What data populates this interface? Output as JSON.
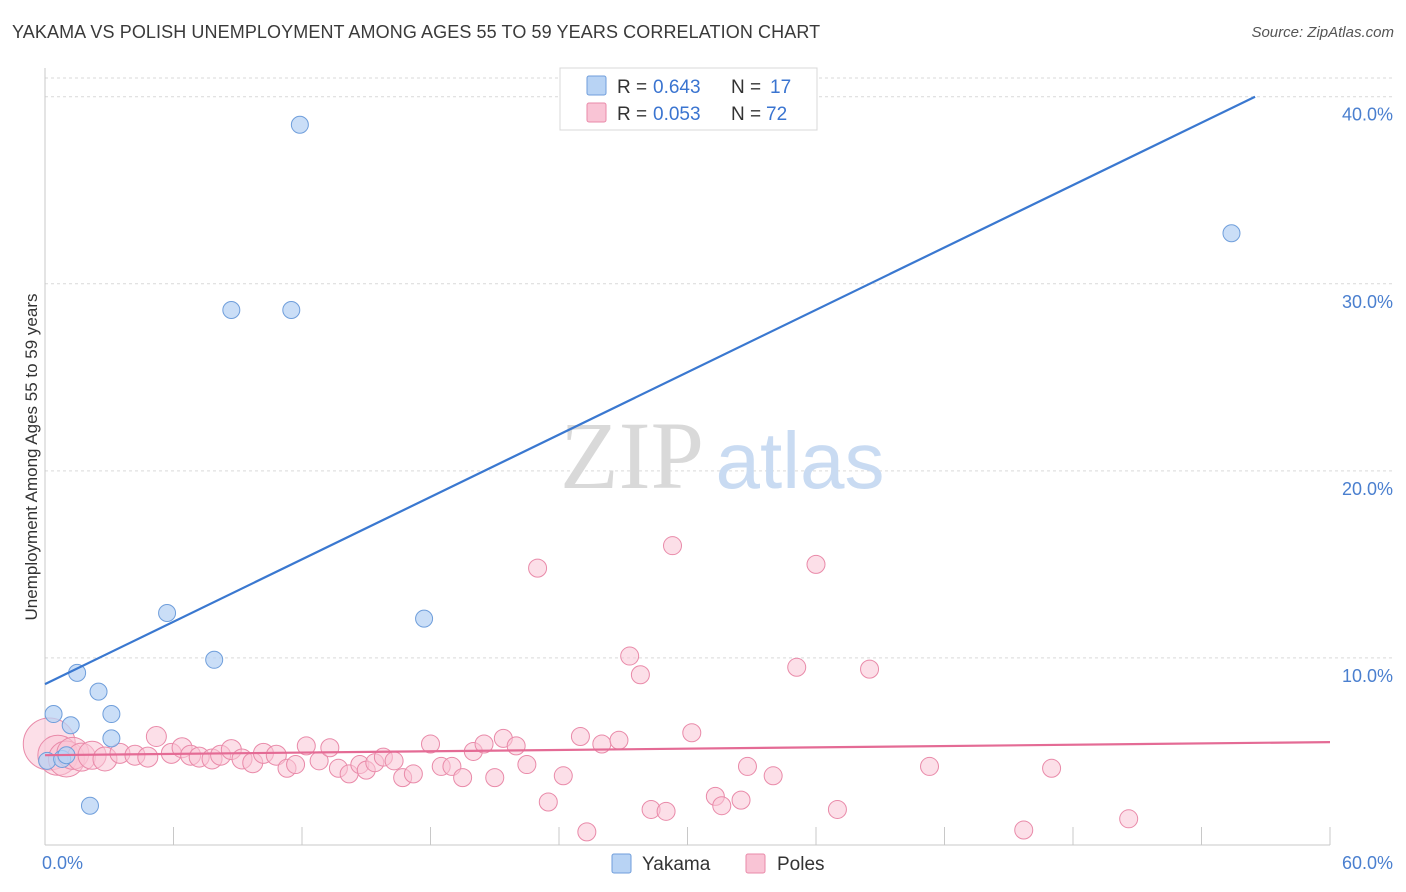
{
  "header": {
    "title": "YAKAMA VS POLISH UNEMPLOYMENT AMONG AGES 55 TO 59 YEARS CORRELATION CHART",
    "source": "Source: ZipAtlas.com"
  },
  "watermark": {
    "zip": "ZIP",
    "atlas": "atlas"
  },
  "colors": {
    "yakama_fill": "#b8d3f4",
    "yakama_stroke": "#6f9edb",
    "yakama_line": "#3a78d0",
    "poles_fill": "#f9c4d5",
    "poles_stroke": "#e98aa9",
    "poles_line": "#e46b95",
    "grid": "#d9d9d9",
    "axis_text": "#4a7fcf"
  },
  "legend_top": {
    "rows": [
      {
        "r_label": "R =",
        "r_value": "0.643",
        "n_label": "N =",
        "n_value": "17"
      },
      {
        "r_label": "R =",
        "r_value": "0.053",
        "n_label": "N =",
        "n_value": "72"
      }
    ]
  },
  "legend_bottom": {
    "items": [
      "Yakama",
      "Poles"
    ]
  },
  "chart_data": {
    "type": "scatter",
    "title": "YAKAMA VS POLISH UNEMPLOYMENT AMONG AGES 55 TO 59 YEARS CORRELATION CHART",
    "xlabel": "",
    "ylabel": "Unemployment Among Ages 55 to 59 years",
    "xlim": [
      0,
      60
    ],
    "ylim": [
      0,
      41
    ],
    "x_tick_labels": [
      "0.0%",
      "60.0%"
    ],
    "y_ticks": [
      10,
      20,
      30,
      40
    ],
    "y_tick_labels": [
      "10.0%",
      "20.0%",
      "30.0%",
      "40.0%"
    ],
    "grid": true,
    "legend_position": "top-center",
    "series": [
      {
        "name": "Yakama",
        "R": 0.643,
        "N": 17,
        "points": [
          [
            0.1,
            4.5
          ],
          [
            0.4,
            7.0
          ],
          [
            0.8,
            4.6
          ],
          [
            1.0,
            4.8
          ],
          [
            1.2,
            6.4
          ],
          [
            1.5,
            9.2
          ],
          [
            2.1,
            2.1
          ],
          [
            2.5,
            8.2
          ],
          [
            3.1,
            7.0
          ],
          [
            3.1,
            5.7
          ],
          [
            5.7,
            12.4
          ],
          [
            7.9,
            9.9
          ],
          [
            8.7,
            28.6
          ],
          [
            11.5,
            28.6
          ],
          [
            11.9,
            38.5
          ],
          [
            17.7,
            12.1
          ],
          [
            55.4,
            32.7
          ]
        ],
        "trend": {
          "x": [
            0,
            56.5
          ],
          "y": [
            8.6,
            40.0
          ]
        }
      },
      {
        "name": "Poles",
        "R": 0.053,
        "N": 72,
        "points": [
          [
            0.2,
            5.4,
            26
          ],
          [
            0.6,
            4.8,
            20
          ],
          [
            1.0,
            4.6,
            18
          ],
          [
            1.3,
            4.9,
            16
          ],
          [
            1.7,
            4.7,
            14
          ],
          [
            2.2,
            4.8,
            14
          ],
          [
            2.8,
            4.6,
            12
          ],
          [
            3.5,
            4.9,
            10
          ],
          [
            4.2,
            4.8,
            10
          ],
          [
            4.8,
            4.7,
            10
          ],
          [
            5.2,
            5.8,
            10
          ],
          [
            5.9,
            4.9,
            10
          ],
          [
            6.4,
            5.2,
            10
          ],
          [
            6.8,
            4.8,
            10
          ],
          [
            7.2,
            4.7,
            10
          ],
          [
            7.8,
            4.6,
            10
          ],
          [
            8.2,
            4.8,
            10
          ],
          [
            8.7,
            5.1,
            10
          ],
          [
            9.2,
            4.6,
            10
          ],
          [
            9.7,
            4.4,
            10
          ],
          [
            10.2,
            4.9,
            10
          ],
          [
            10.8,
            4.8,
            10
          ],
          [
            11.3,
            4.1,
            9
          ],
          [
            11.7,
            4.3,
            9
          ],
          [
            12.2,
            5.3,
            9
          ],
          [
            12.8,
            4.5,
            9
          ],
          [
            13.3,
            5.2,
            9
          ],
          [
            13.7,
            4.1,
            9
          ],
          [
            14.2,
            3.8,
            9
          ],
          [
            14.7,
            4.3,
            9
          ],
          [
            15.0,
            4.0,
            9
          ],
          [
            15.4,
            4.4,
            9
          ],
          [
            15.8,
            4.7,
            9
          ],
          [
            16.3,
            4.5,
            9
          ],
          [
            16.7,
            3.6,
            9
          ],
          [
            17.2,
            3.8,
            9
          ],
          [
            18.0,
            5.4,
            9
          ],
          [
            18.5,
            4.2,
            9
          ],
          [
            19.0,
            4.2,
            9
          ],
          [
            19.5,
            3.6,
            9
          ],
          [
            20.0,
            5.0,
            9
          ],
          [
            20.5,
            5.4,
            9
          ],
          [
            21.0,
            3.6,
            9
          ],
          [
            21.4,
            5.7,
            9
          ],
          [
            22.0,
            5.3,
            9
          ],
          [
            22.5,
            4.3,
            9
          ],
          [
            23.0,
            14.8,
            9
          ],
          [
            23.5,
            2.3,
            9
          ],
          [
            24.2,
            3.7,
            9
          ],
          [
            25.0,
            5.8,
            9
          ],
          [
            25.3,
            0.7,
            9
          ],
          [
            26.0,
            5.4,
            9
          ],
          [
            26.8,
            5.6,
            9
          ],
          [
            27.3,
            10.1,
            9
          ],
          [
            27.8,
            9.1,
            9
          ],
          [
            28.3,
            1.9,
            9
          ],
          [
            29.0,
            1.8,
            9
          ],
          [
            29.3,
            16.0,
            9
          ],
          [
            30.2,
            6.0,
            9
          ],
          [
            31.3,
            2.6,
            9
          ],
          [
            31.6,
            2.1,
            9
          ],
          [
            32.5,
            2.4,
            9
          ],
          [
            32.8,
            4.2,
            9
          ],
          [
            34.0,
            3.7,
            9
          ],
          [
            35.1,
            9.5,
            9
          ],
          [
            36.0,
            15.0,
            9
          ],
          [
            37.0,
            1.9,
            9
          ],
          [
            38.5,
            9.4,
            9
          ],
          [
            41.3,
            4.2,
            9
          ],
          [
            45.7,
            0.8,
            9
          ],
          [
            47.0,
            4.1,
            9
          ],
          [
            50.6,
            1.4,
            9
          ]
        ],
        "trend": {
          "x": [
            0,
            60
          ],
          "y": [
            4.8,
            5.5
          ]
        }
      }
    ]
  }
}
